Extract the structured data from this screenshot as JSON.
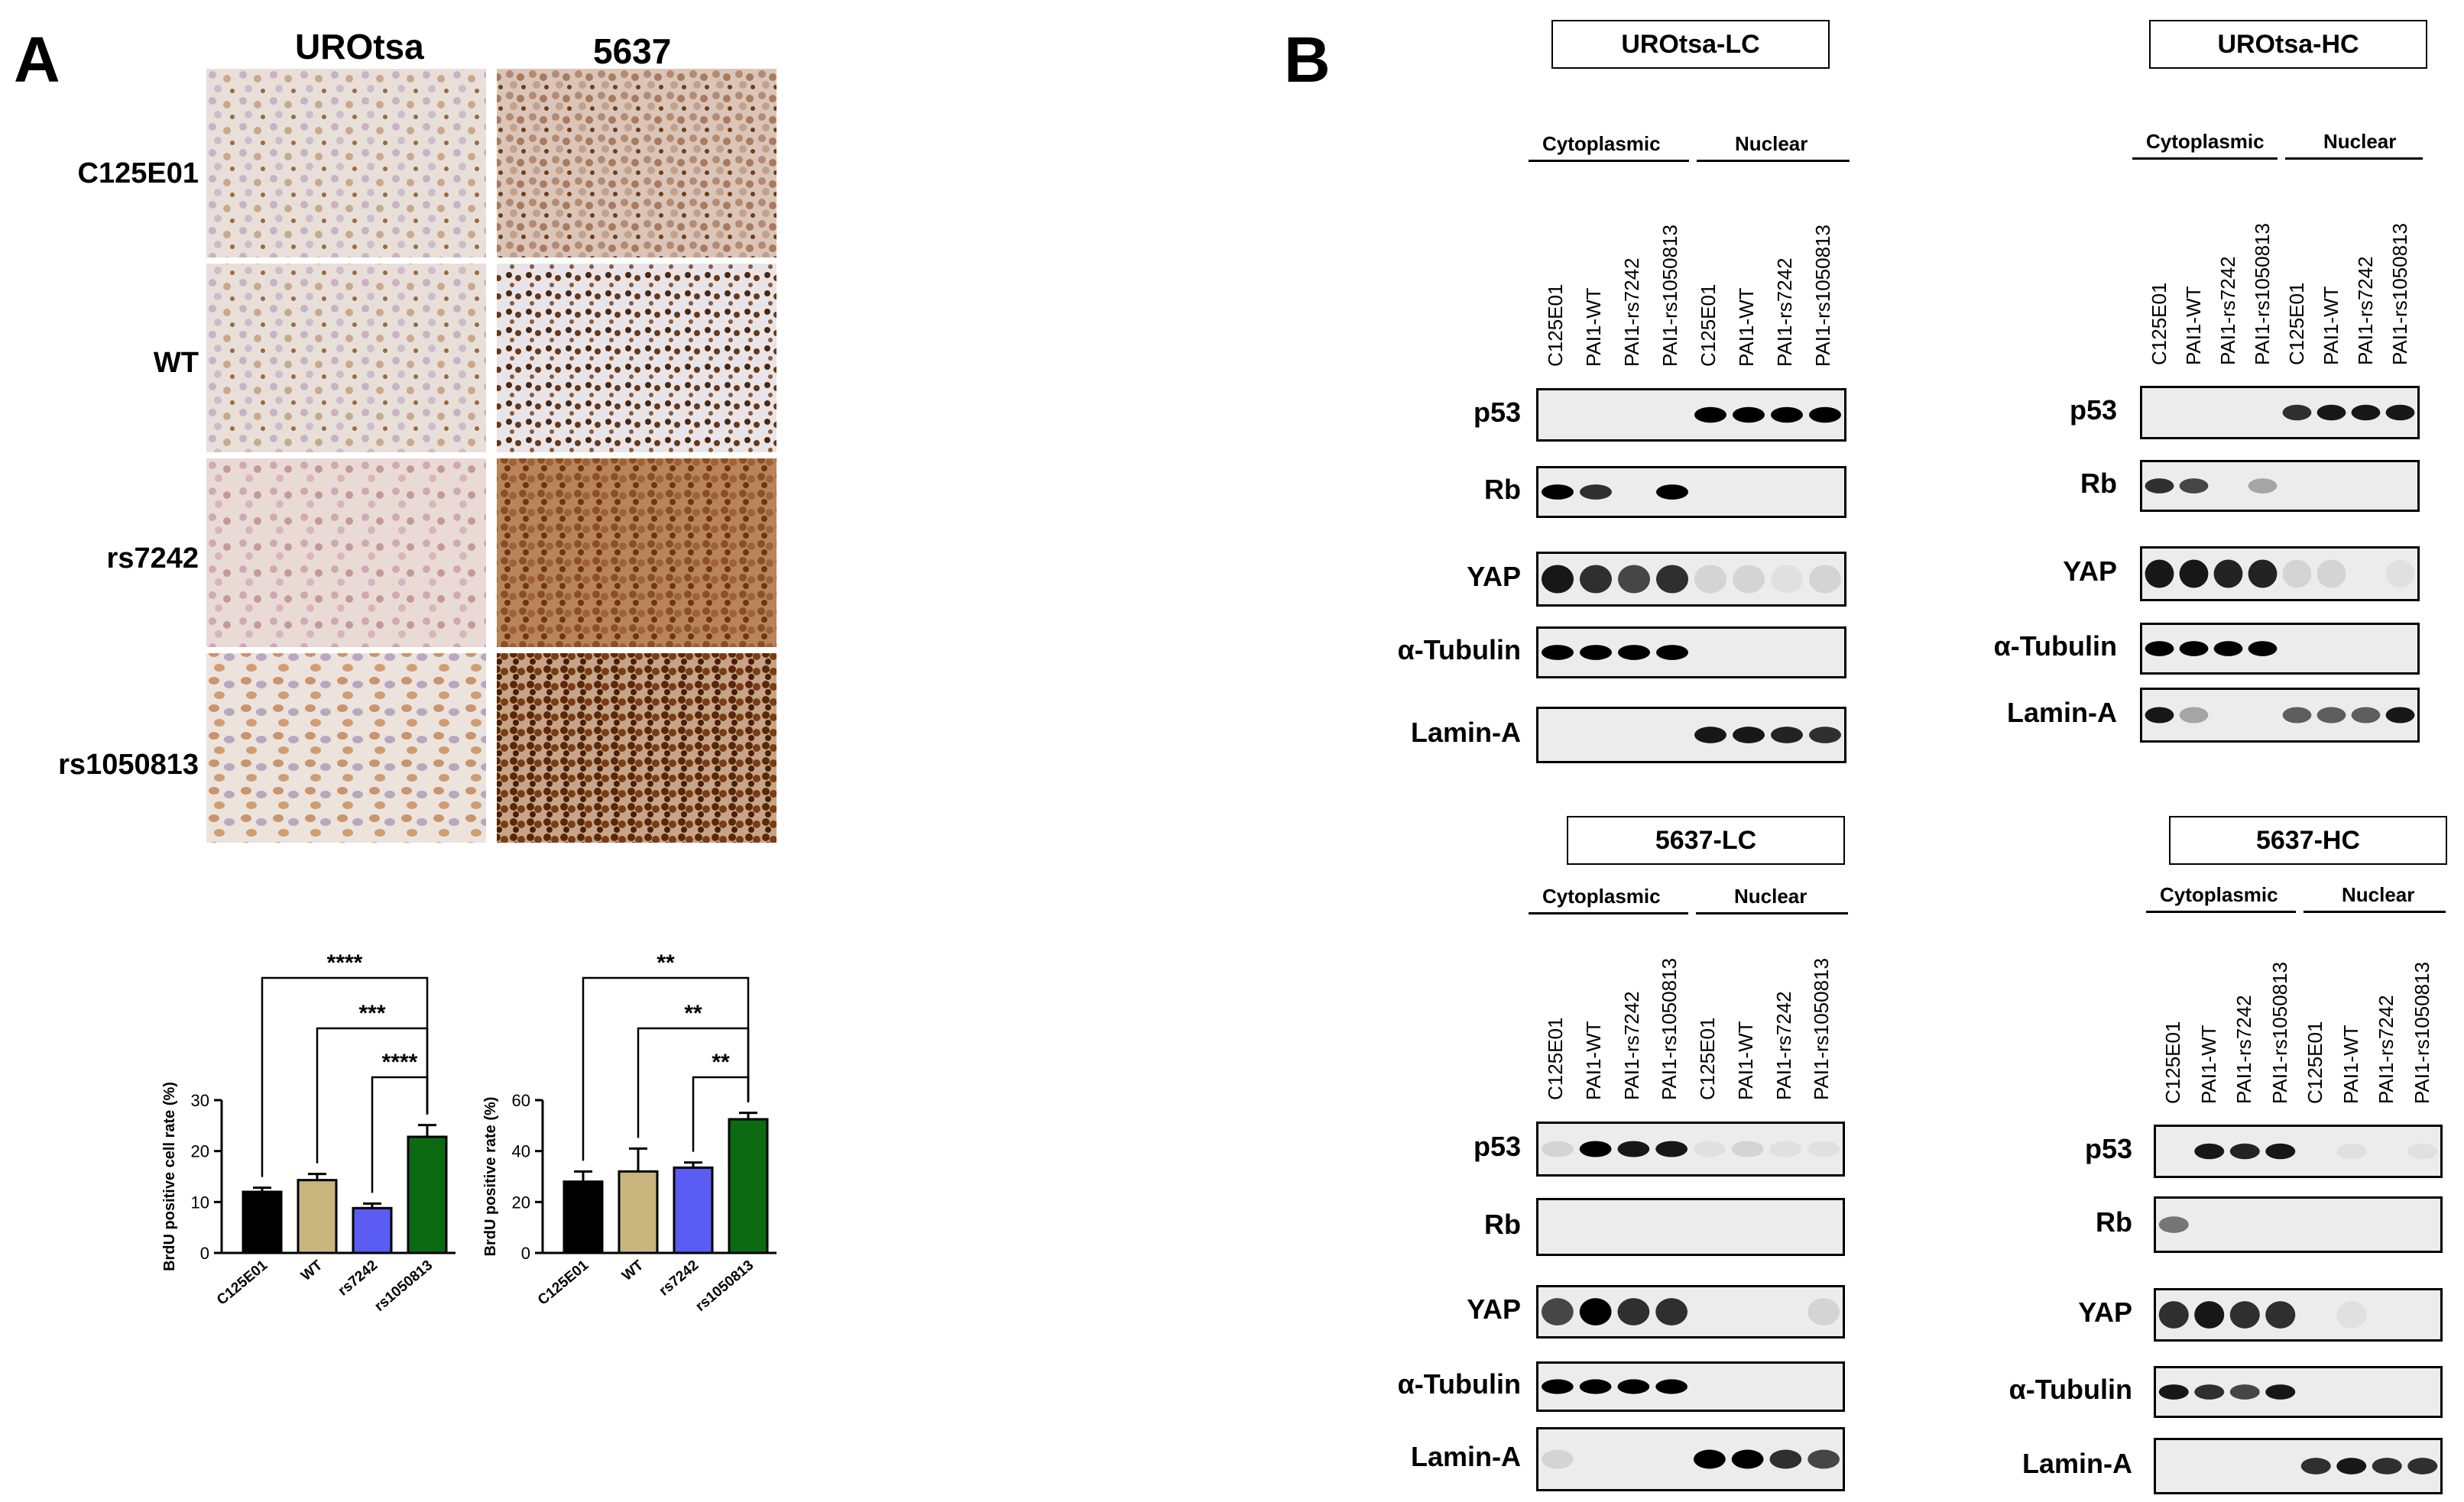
{
  "panelA": {
    "letter": "A",
    "columns": [
      "UROtsa",
      "5637"
    ],
    "rows": [
      "C125E01",
      "WT",
      "rs7242",
      "rs1050813"
    ],
    "chart_data": [
      {
        "type": "bar",
        "title": "",
        "ylabel": "BrdU positive cell rate (%)",
        "xlabel": "",
        "categories": [
          "C125E01",
          "WT",
          "rs7242",
          "rs1050813"
        ],
        "values": [
          12,
          14.3,
          8.8,
          22.8
        ],
        "errors": [
          0.8,
          1.2,
          0.9,
          2.3
        ],
        "colors": [
          "#000000",
          "#c8b57e",
          "#5a5cf2",
          "#0c6b12"
        ],
        "ylim": [
          0,
          30
        ],
        "yticks": [
          "0",
          "10",
          "20",
          "30"
        ],
        "significance": [
          {
            "from": "C125E01",
            "to": "rs1050813",
            "label": "****"
          },
          {
            "from": "WT",
            "to": "rs1050813",
            "label": "***"
          },
          {
            "from": "rs7242",
            "to": "rs1050813",
            "label": "****"
          }
        ]
      },
      {
        "type": "bar",
        "title": "",
        "ylabel": "BrdU positive rate (%)",
        "xlabel": "",
        "categories": [
          "C125E01",
          "WT",
          "rs7242",
          "rs1050813"
        ],
        "values": [
          28,
          32,
          33.5,
          52.5
        ],
        "errors": [
          4,
          9,
          2,
          2.5
        ],
        "colors": [
          "#000000",
          "#c8b57e",
          "#5a5cf2",
          "#0c6b12"
        ],
        "ylim": [
          0,
          60
        ],
        "yticks": [
          "0",
          "20",
          "40",
          "60"
        ],
        "significance": [
          {
            "from": "C125E01",
            "to": "rs1050813",
            "label": "**"
          },
          {
            "from": "WT",
            "to": "rs1050813",
            "label": "**"
          },
          {
            "from": "rs7242",
            "to": "rs1050813",
            "label": "**"
          }
        ]
      }
    ]
  },
  "panelB": {
    "letter": "B",
    "fractions": [
      "Cytoplasmic",
      "Nuclear"
    ],
    "lanes": [
      "C125E01",
      "PAI1-WT",
      "PAI1-rs7242",
      "PAI1-rs1050813",
      "C125E01",
      "PAI1-WT",
      "PAI1-rs7242",
      "PAI1-rs1050813"
    ],
    "proteins": [
      "p53",
      "Rb",
      "YAP",
      "α-Tubulin",
      "Lamin-A"
    ],
    "blots": [
      {
        "title": "UROtsa-LC"
      },
      {
        "title": "UROtsa-HC"
      },
      {
        "title": "5637-LC"
      },
      {
        "title": "5637-HC"
      }
    ]
  }
}
